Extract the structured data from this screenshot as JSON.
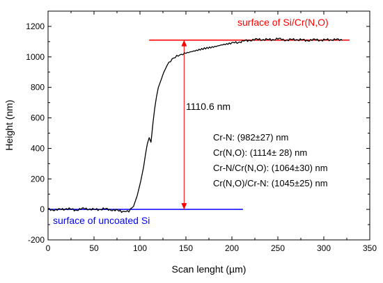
{
  "chart_data": {
    "type": "line",
    "title": "",
    "xlabel": "Scan lenght (µm)",
    "ylabel": "Height (nm)",
    "xlim": [
      0,
      350
    ],
    "ylim": [
      -200,
      1300
    ],
    "x_ticks": [
      "0",
      "50",
      "100",
      "150",
      "200",
      "250",
      "300",
      "350"
    ],
    "y_ticks": [
      "-200",
      "0",
      "200",
      "400",
      "600",
      "800",
      "1000",
      "1200"
    ],
    "series": [
      {
        "color": "#000000",
        "x": [
          0,
          10,
          20,
          30,
          40,
          50,
          60,
          70,
          80,
          88,
          93,
          97,
          101,
          104,
          106,
          108,
          110,
          112,
          114,
          116,
          118,
          120,
          123,
          126,
          130,
          135,
          140,
          145,
          150,
          160,
          170,
          180,
          190,
          200,
          210,
          220,
          230,
          240,
          250,
          260,
          270,
          280,
          290,
          300,
          310,
          320
        ],
        "y": [
          0,
          -3,
          5,
          -4,
          6,
          -2,
          3,
          -3,
          -12,
          -8,
          20,
          90,
          190,
          280,
          360,
          430,
          470,
          440,
          560,
          660,
          740,
          800,
          850,
          900,
          950,
          985,
          1005,
          1015,
          1025,
          1040,
          1055,
          1065,
          1080,
          1090,
          1100,
          1110,
          1115,
          1112,
          1118,
          1110,
          1115,
          1108,
          1112,
          1110,
          1114,
          1110
        ]
      }
    ],
    "reference_lines": [
      {
        "label": "surface of Si/Cr(N,O)",
        "y": 1110,
        "x_range": [
          110,
          328
        ],
        "color": "#ff0000"
      },
      {
        "label": "surface of uncoated Si",
        "y": 0,
        "x_range": [
          0,
          212
        ],
        "color": "#0000ff"
      }
    ],
    "measurement": {
      "label": "1110.6 nm",
      "x": 148,
      "y_from": 0,
      "y_to": 1110,
      "color": "#ff0000"
    },
    "annotations": [
      "Cr-N:  (982±27) nm",
      "Cr(N,O):  (1114± 28) nm",
      "Cr-N/Cr(N,O): (1064±30) nm",
      "Cr(N,O)/Cr-N: (1045±25) nm"
    ]
  }
}
